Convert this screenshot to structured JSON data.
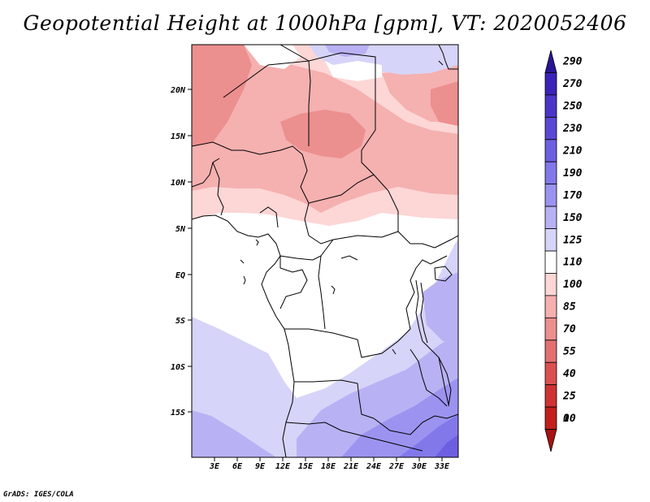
{
  "title": "Geopotential Height at 1000hPa [gpm], VT: 2020052406",
  "credit": "GrADS: IGES/COLA",
  "map": {
    "lat_labels": [
      "20N",
      "15N",
      "10N",
      "5N",
      "EQ",
      "5S",
      "10S",
      "15S"
    ],
    "lon_labels": [
      "3E",
      "6E",
      "9E",
      "12E",
      "15E",
      "18E",
      "21E",
      "24E",
      "27E",
      "30E",
      "33E"
    ]
  },
  "colorbar": {
    "levels": [
      "290",
      "270",
      "250",
      "230",
      "210",
      "190",
      "170",
      "150",
      "125",
      "110",
      "100",
      "85",
      "70",
      "55",
      "40",
      "25",
      "10",
      "0"
    ],
    "colors": [
      "#2a1496",
      "#3a22b8",
      "#4a35c8",
      "#5a48d4",
      "#6d5fe0",
      "#8378ea",
      "#9c93f0",
      "#b8b2f4",
      "#d6d4f8",
      "#ffffff",
      "#fdd6d6",
      "#f5b0b0",
      "#ec8f8f",
      "#e37070",
      "#da5050",
      "#cf3232",
      "#c21e1e",
      "#a81212"
    ]
  },
  "colors": {
    "frame": "#000000",
    "border": "#000000"
  }
}
